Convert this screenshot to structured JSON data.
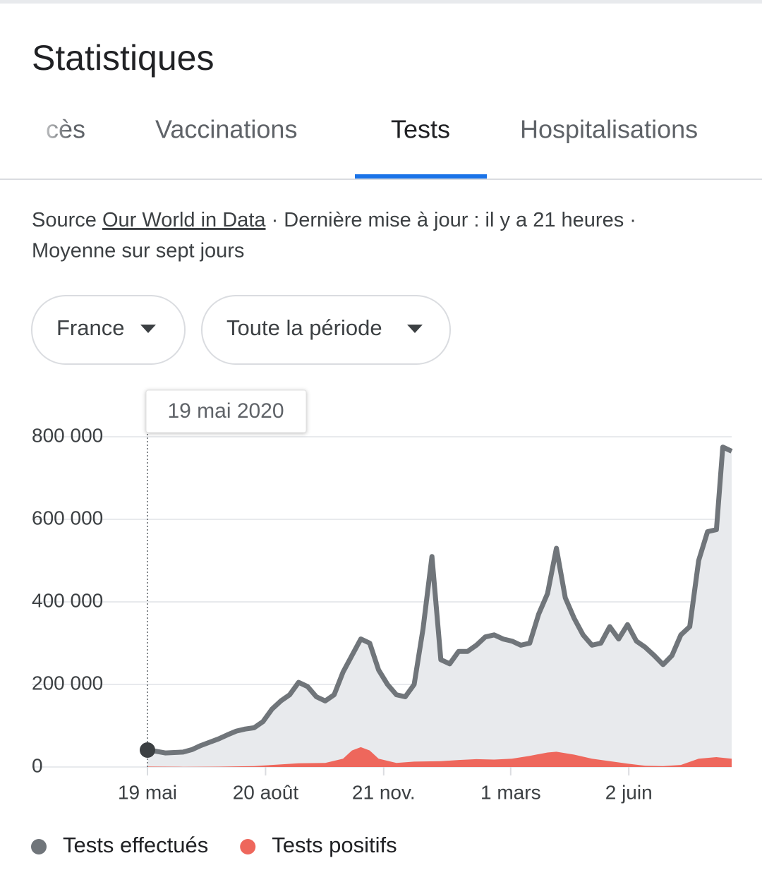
{
  "header": {
    "title": "Statistiques"
  },
  "tabs": [
    {
      "label": "cès"
    },
    {
      "label": "Vaccinations"
    },
    {
      "label": "Tests",
      "active": true
    },
    {
      "label": "Hospitalisations"
    }
  ],
  "source": {
    "prefix": "Source",
    "link": "Our World in Data",
    "updated": "· Dernière mise à jour : il y a 21 heures ·",
    "note": "Moyenne sur sept jours"
  },
  "filters": [
    "France",
    "Toute la période"
  ],
  "tooltip": "19 mai 2020",
  "chart_data": {
    "type": "area",
    "xlim": [
      "2020-05-19",
      "2021-08-22"
    ],
    "xticks": [
      {
        "value": "2020-05-19",
        "label": "19 mai"
      },
      {
        "value": "2020-08-20",
        "label": "20 août"
      },
      {
        "value": "2020-11-21",
        "label": "21 nov."
      },
      {
        "value": "2021-03-01",
        "label": "1 mars"
      },
      {
        "value": "2021-06-02",
        "label": "2 juin"
      }
    ],
    "ylim": [
      0,
      800000
    ],
    "yticks": [
      0,
      {
        "value": 200000,
        "label": "200 000"
      },
      {
        "value": 400000,
        "label": "400 000"
      },
      {
        "value": 600000,
        "label": "600 000"
      },
      {
        "value": 800000,
        "label": "800 000"
      }
    ],
    "grid": true,
    "series": [
      {
        "name": "Tests effectués",
        "color": "#70757a",
        "fill": "#e8eaed",
        "x": [
          "2020-05-19",
          "2020-05-26",
          "2020-06-02",
          "2020-06-09",
          "2020-06-16",
          "2020-06-23",
          "2020-06-30",
          "2020-07-07",
          "2020-07-14",
          "2020-07-21",
          "2020-07-28",
          "2020-08-04",
          "2020-08-11",
          "2020-08-18",
          "2020-08-25",
          "2020-09-01",
          "2020-09-08",
          "2020-09-15",
          "2020-09-22",
          "2020-09-29",
          "2020-10-06",
          "2020-10-13",
          "2020-10-20",
          "2020-10-27",
          "2020-11-03",
          "2020-11-10",
          "2020-11-17",
          "2020-11-24",
          "2020-12-01",
          "2020-12-08",
          "2020-12-15",
          "2020-12-22",
          "2020-12-29",
          "2021-01-05",
          "2021-01-12",
          "2021-01-19",
          "2021-01-26",
          "2021-02-02",
          "2021-02-09",
          "2021-02-16",
          "2021-02-23",
          "2021-03-02",
          "2021-03-09",
          "2021-03-16",
          "2021-03-23",
          "2021-03-30",
          "2021-04-06",
          "2021-04-13",
          "2021-04-20",
          "2021-04-27",
          "2021-05-04",
          "2021-05-11",
          "2021-05-18",
          "2021-05-25",
          "2021-06-01",
          "2021-06-08",
          "2021-06-15",
          "2021-06-22",
          "2021-06-29",
          "2021-07-06",
          "2021-07-13",
          "2021-07-20",
          "2021-07-27",
          "2021-08-03",
          "2021-08-10",
          "2021-08-15",
          "2021-08-22"
        ],
        "values": [
          41000,
          38000,
          34000,
          35000,
          36000,
          42000,
          52000,
          60000,
          68000,
          78000,
          87000,
          92000,
          95000,
          110000,
          140000,
          160000,
          175000,
          205000,
          195000,
          170000,
          160000,
          175000,
          230000,
          270000,
          310000,
          300000,
          235000,
          200000,
          175000,
          170000,
          200000,
          335000,
          510000,
          260000,
          250000,
          280000,
          280000,
          295000,
          315000,
          320000,
          310000,
          305000,
          295000,
          300000,
          370000,
          420000,
          530000,
          410000,
          360000,
          320000,
          295000,
          300000,
          340000,
          310000,
          345000,
          305000,
          290000,
          270000,
          248000,
          270000,
          320000,
          340000,
          500000,
          570000,
          575000,
          775000,
          765000
        ]
      },
      {
        "name": "Tests positifs",
        "color": "#ee675c",
        "fill": "#ee675c",
        "x": [
          "2020-05-19",
          "2020-06-16",
          "2020-07-14",
          "2020-08-11",
          "2020-08-25",
          "2020-09-15",
          "2020-10-06",
          "2020-10-20",
          "2020-10-27",
          "2020-11-03",
          "2020-11-10",
          "2020-11-17",
          "2020-12-01",
          "2020-12-15",
          "2021-01-05",
          "2021-01-19",
          "2021-02-02",
          "2021-02-16",
          "2021-03-02",
          "2021-03-16",
          "2021-03-30",
          "2021-04-06",
          "2021-04-20",
          "2021-05-04",
          "2021-05-18",
          "2021-06-01",
          "2021-06-15",
          "2021-06-29",
          "2021-07-13",
          "2021-07-27",
          "2021-08-10",
          "2021-08-22"
        ],
        "values": [
          1000,
          500,
          800,
          2000,
          5000,
          9000,
          10000,
          20000,
          40000,
          48000,
          40000,
          20000,
          10000,
          13000,
          14000,
          17000,
          19000,
          18000,
          20000,
          27000,
          35000,
          37000,
          30000,
          20000,
          14000,
          8000,
          3000,
          2000,
          5000,
          20000,
          24000,
          20000
        ]
      }
    ]
  }
}
